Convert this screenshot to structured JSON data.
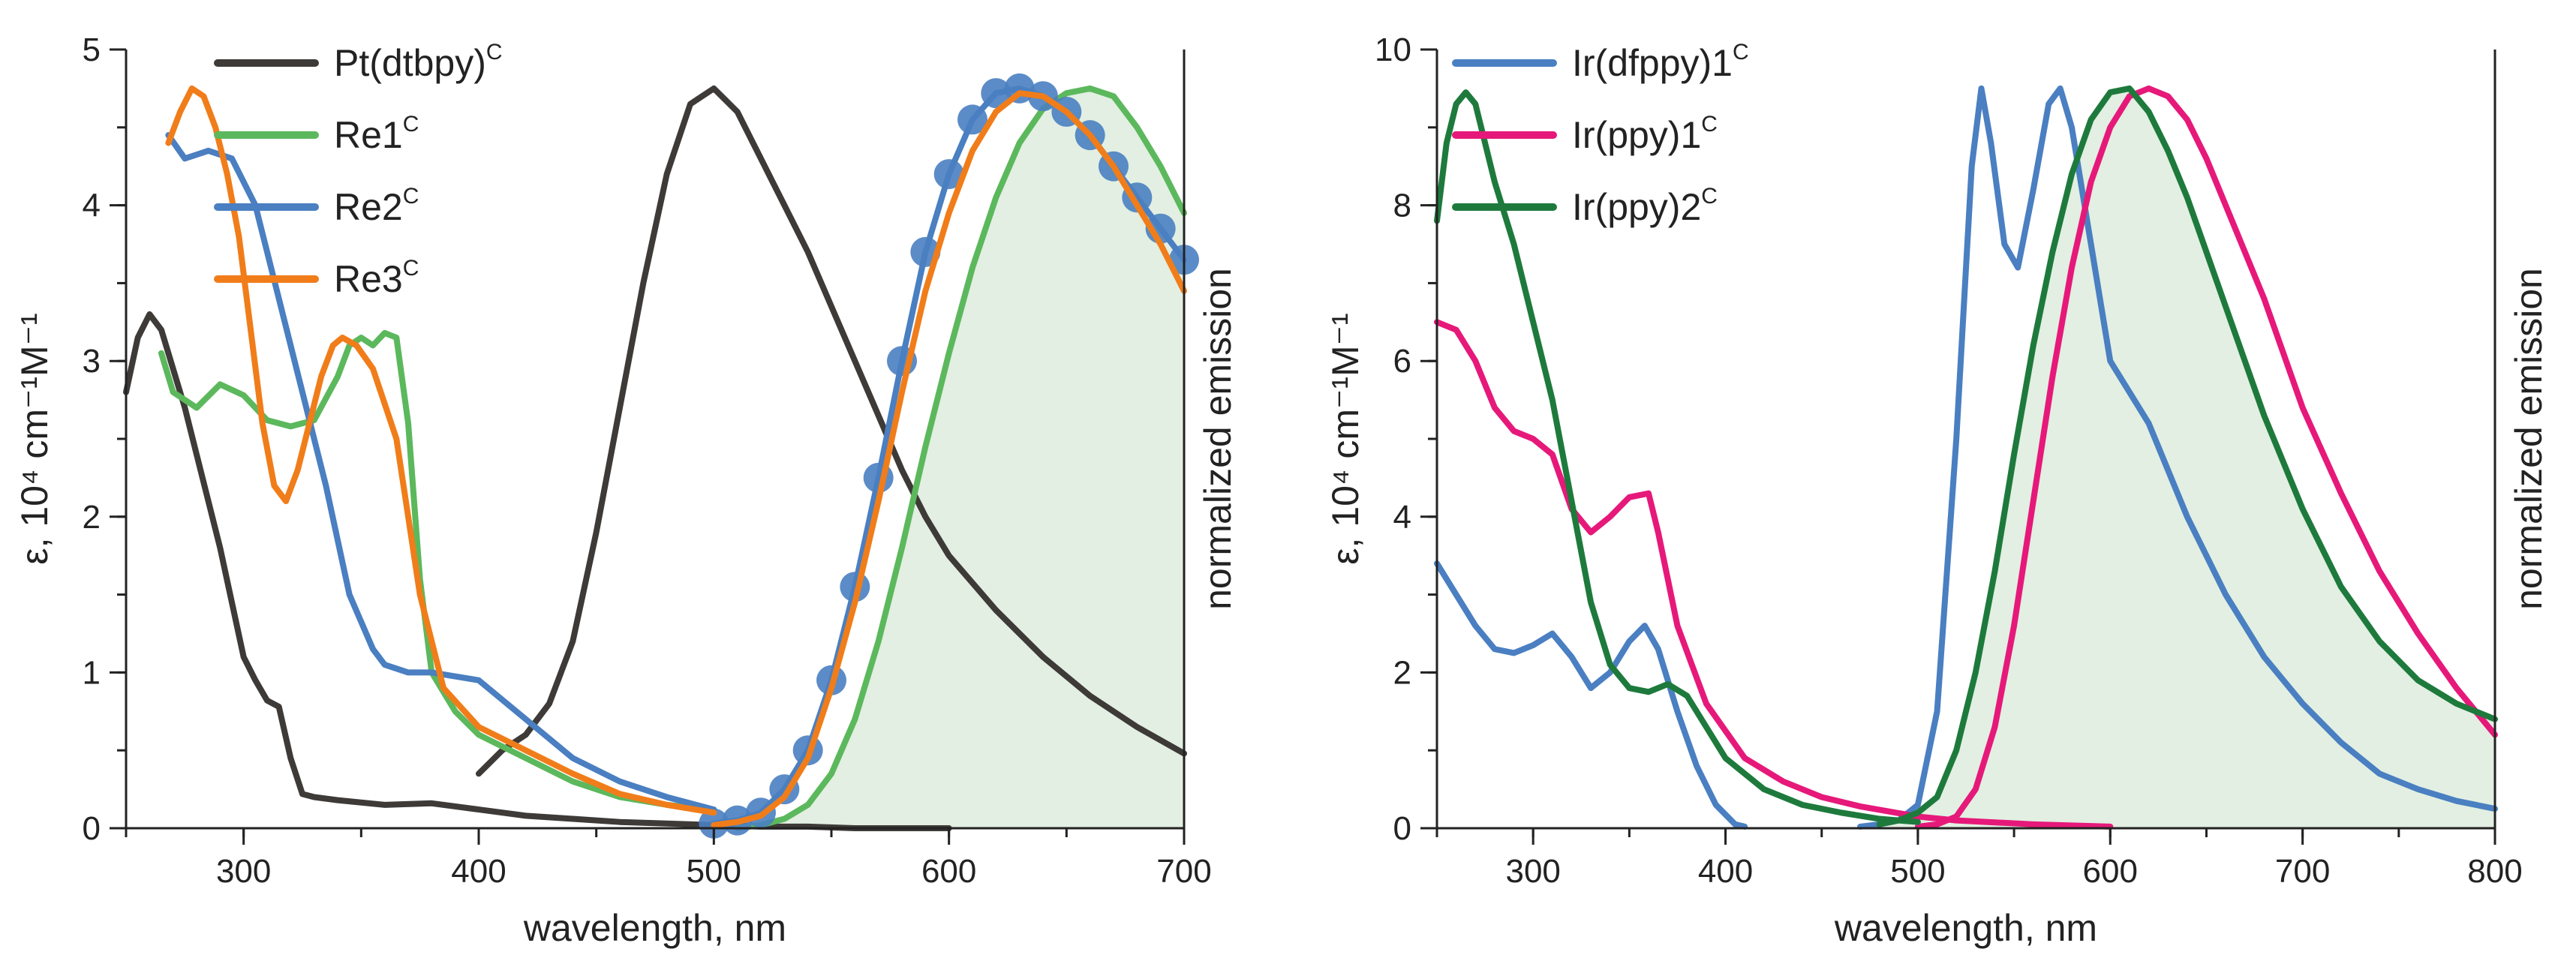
{
  "chart_data": [
    {
      "type": "line",
      "panel": "left",
      "xlabel": "wavelength, nm",
      "ylabel": "ε, 10⁴ cm⁻¹M⁻¹",
      "ylabel_right": "normalized emission",
      "xlim": [
        250,
        700
      ],
      "ylim": [
        0,
        5
      ],
      "xticks": [
        300,
        400,
        500,
        600,
        700
      ],
      "xtick_labels": [
        "300",
        "400",
        "500",
        "600",
        "700"
      ],
      "yticks": [
        0,
        1,
        2,
        3,
        4,
        5
      ],
      "ytick_labels": [
        "0",
        "1",
        "2",
        "3",
        "4",
        "5"
      ],
      "legend_position": "top-left",
      "series": [
        {
          "name": "Pt(dtbpy)",
          "sup": "C",
          "color": "#3d3a38",
          "kind": "absorption",
          "x": [
            250,
            255,
            260,
            265,
            270,
            275,
            280,
            290,
            300,
            305,
            310,
            315,
            320,
            325,
            330,
            340,
            360,
            380,
            400,
            420,
            440,
            460,
            480,
            500,
            520,
            540,
            560,
            580,
            600
          ],
          "y": [
            2.8,
            3.15,
            3.3,
            3.2,
            2.95,
            2.7,
            2.4,
            1.8,
            1.1,
            0.95,
            0.82,
            0.78,
            0.45,
            0.22,
            0.2,
            0.18,
            0.15,
            0.16,
            0.12,
            0.08,
            0.06,
            0.04,
            0.03,
            0.02,
            0.01,
            0.01,
            0.0,
            0.0,
            0.0
          ]
        },
        {
          "name": "Pt(dtbpy)",
          "sup": "C",
          "color": "#3d3a38",
          "kind": "emission",
          "legend": false,
          "x": [
            400,
            410,
            420,
            430,
            440,
            450,
            460,
            470,
            480,
            490,
            500,
            510,
            520,
            530,
            540,
            550,
            560,
            570,
            580,
            590,
            600,
            620,
            640,
            660,
            680,
            700
          ],
          "y": [
            0.35,
            0.5,
            0.6,
            0.8,
            1.2,
            1.9,
            2.7,
            3.5,
            4.2,
            4.65,
            4.75,
            4.6,
            4.3,
            4.0,
            3.7,
            3.35,
            3.0,
            2.65,
            2.3,
            2.0,
            1.75,
            1.4,
            1.1,
            0.85,
            0.65,
            0.48
          ]
        },
        {
          "name": "Re1",
          "sup": "C",
          "color": "#5cb85c",
          "kind": "absorption",
          "x": [
            265,
            270,
            280,
            290,
            300,
            310,
            320,
            330,
            340,
            345,
            350,
            355,
            360,
            365,
            370,
            375,
            380,
            390,
            400,
            420,
            440,
            460,
            480,
            500
          ],
          "y": [
            3.05,
            2.8,
            2.7,
            2.85,
            2.78,
            2.62,
            2.58,
            2.62,
            2.9,
            3.1,
            3.15,
            3.1,
            3.18,
            3.15,
            2.6,
            1.6,
            1.0,
            0.75,
            0.6,
            0.45,
            0.3,
            0.2,
            0.15,
            0.12
          ]
        },
        {
          "name": "Re1",
          "sup": "C",
          "color": "#5cb85c",
          "kind": "emission",
          "legend": false,
          "fill": "#e2efe2",
          "x": [
            510,
            520,
            530,
            540,
            550,
            560,
            570,
            580,
            590,
            600,
            610,
            620,
            630,
            640,
            650,
            660,
            670,
            680,
            690,
            700
          ],
          "y": [
            0.0,
            0.02,
            0.06,
            0.15,
            0.35,
            0.7,
            1.2,
            1.8,
            2.45,
            3.05,
            3.6,
            4.05,
            4.4,
            4.62,
            4.72,
            4.75,
            4.7,
            4.5,
            4.25,
            3.95
          ]
        },
        {
          "name": "Re2",
          "sup": "C",
          "color": "#4a7fc1",
          "kind": "absorption",
          "x": [
            268,
            275,
            285,
            295,
            305,
            315,
            325,
            335,
            345,
            355,
            360,
            370,
            380,
            400,
            420,
            440,
            460,
            480,
            500
          ],
          "y": [
            4.45,
            4.3,
            4.35,
            4.3,
            4.0,
            3.4,
            2.8,
            2.2,
            1.5,
            1.15,
            1.05,
            1.0,
            1.0,
            0.95,
            0.7,
            0.45,
            0.3,
            0.2,
            0.12
          ]
        },
        {
          "name": "Re2",
          "sup": "C",
          "color": "#4a7fc1",
          "kind": "emission",
          "legend": false,
          "markers": true,
          "x": [
            500,
            510,
            520,
            530,
            540,
            550,
            560,
            570,
            580,
            590,
            600,
            610,
            620,
            630,
            640,
            650,
            660,
            670,
            680,
            690,
            700
          ],
          "y": [
            0.03,
            0.05,
            0.1,
            0.25,
            0.5,
            0.95,
            1.55,
            2.25,
            3.0,
            3.7,
            4.2,
            4.55,
            4.72,
            4.75,
            4.7,
            4.6,
            4.45,
            4.25,
            4.05,
            3.85,
            3.65
          ]
        },
        {
          "name": "Re3",
          "sup": "C",
          "color": "#f07d1a",
          "kind": "absorption",
          "x": [
            268,
            273,
            278,
            283,
            288,
            293,
            298,
            303,
            308,
            313,
            318,
            323,
            328,
            333,
            338,
            342,
            348,
            355,
            365,
            375,
            385,
            400,
            420,
            440,
            460,
            480,
            500
          ],
          "y": [
            4.4,
            4.6,
            4.75,
            4.7,
            4.5,
            4.2,
            3.8,
            3.2,
            2.6,
            2.2,
            2.1,
            2.3,
            2.6,
            2.9,
            3.1,
            3.15,
            3.1,
            2.95,
            2.5,
            1.5,
            0.9,
            0.65,
            0.5,
            0.35,
            0.22,
            0.15,
            0.1
          ]
        },
        {
          "name": "Re3",
          "sup": "C",
          "color": "#f07d1a",
          "kind": "emission",
          "legend": false,
          "x": [
            500,
            510,
            520,
            530,
            540,
            550,
            560,
            570,
            580,
            590,
            600,
            610,
            620,
            630,
            640,
            650,
            660,
            670,
            680,
            690,
            700
          ],
          "y": [
            0.02,
            0.04,
            0.08,
            0.2,
            0.45,
            0.9,
            1.45,
            2.1,
            2.8,
            3.45,
            3.95,
            4.35,
            4.6,
            4.72,
            4.7,
            4.6,
            4.45,
            4.25,
            4.0,
            3.75,
            3.45
          ]
        }
      ]
    },
    {
      "type": "line",
      "panel": "right",
      "xlabel": "wavelength, nm",
      "ylabel": "ε, 10⁴ cm⁻¹M⁻¹",
      "ylabel_right": "normalized emission",
      "xlim": [
        250,
        800
      ],
      "ylim": [
        0,
        10
      ],
      "xticks": [
        300,
        400,
        500,
        600,
        700,
        800
      ],
      "xtick_labels": [
        "300",
        "400",
        "500",
        "600",
        "700",
        "800"
      ],
      "yticks": [
        0,
        2,
        4,
        6,
        8,
        10
      ],
      "ytick_labels": [
        "0",
        "2",
        "4",
        "6",
        "8",
        "10"
      ],
      "legend_position": "top-left",
      "series": [
        {
          "name": "Ir(dfppy)1",
          "sup": "C",
          "color": "#4a7fc1",
          "kind": "absorption",
          "x": [
            250,
            260,
            270,
            280,
            290,
            300,
            310,
            320,
            330,
            340,
            350,
            358,
            365,
            375,
            385,
            395,
            405,
            410
          ],
          "y": [
            3.4,
            3.0,
            2.6,
            2.3,
            2.25,
            2.35,
            2.5,
            2.2,
            1.8,
            2.0,
            2.4,
            2.6,
            2.3,
            1.5,
            0.8,
            0.3,
            0.05,
            0.02
          ]
        },
        {
          "name": "Ir(dfppy)1",
          "sup": "C",
          "color": "#4a7fc1",
          "kind": "emission",
          "legend": false,
          "x": [
            470,
            480,
            490,
            500,
            510,
            520,
            528,
            533,
            538,
            545,
            552,
            560,
            568,
            574,
            580,
            590,
            600,
            620,
            640,
            660,
            680,
            700,
            720,
            740,
            760,
            780,
            800
          ],
          "y": [
            0.02,
            0.05,
            0.1,
            0.3,
            1.5,
            5.0,
            8.5,
            9.5,
            8.8,
            7.5,
            7.2,
            8.2,
            9.3,
            9.5,
            9.0,
            7.5,
            6.0,
            5.2,
            4.0,
            3.0,
            2.2,
            1.6,
            1.1,
            0.7,
            0.5,
            0.35,
            0.25
          ]
        },
        {
          "name": "Ir(ppy)1",
          "sup": "C",
          "color": "#e6197a",
          "kind": "absorption",
          "x": [
            250,
            260,
            270,
            280,
            290,
            300,
            310,
            320,
            330,
            340,
            350,
            360,
            365,
            375,
            390,
            410,
            430,
            450,
            470,
            500,
            520,
            560,
            600
          ],
          "y": [
            6.5,
            6.4,
            6.0,
            5.4,
            5.1,
            5.0,
            4.8,
            4.1,
            3.8,
            4.0,
            4.25,
            4.3,
            3.8,
            2.6,
            1.6,
            0.9,
            0.6,
            0.4,
            0.28,
            0.15,
            0.1,
            0.05,
            0.02
          ]
        },
        {
          "name": "Ir(ppy)1",
          "sup": "C",
          "color": "#e6197a",
          "kind": "emission",
          "legend": false,
          "x": [
            500,
            510,
            520,
            530,
            540,
            550,
            560,
            570,
            580,
            590,
            600,
            610,
            620,
            630,
            640,
            650,
            660,
            670,
            680,
            690,
            700,
            720,
            740,
            760,
            780,
            800
          ],
          "y": [
            0.02,
            0.05,
            0.15,
            0.5,
            1.3,
            2.6,
            4.2,
            5.8,
            7.2,
            8.3,
            9.0,
            9.4,
            9.5,
            9.4,
            9.1,
            8.6,
            8.0,
            7.4,
            6.8,
            6.1,
            5.4,
            4.3,
            3.3,
            2.5,
            1.8,
            1.2
          ]
        },
        {
          "name": "Ir(ppy)2",
          "sup": "C",
          "color": "#1e7a3c",
          "kind": "absorption",
          "x": [
            250,
            255,
            260,
            265,
            270,
            275,
            280,
            290,
            300,
            310,
            320,
            330,
            340,
            350,
            360,
            370,
            380,
            390,
            400,
            420,
            440,
            460,
            480,
            500
          ],
          "y": [
            7.8,
            8.8,
            9.3,
            9.45,
            9.3,
            8.8,
            8.3,
            7.5,
            6.5,
            5.5,
            4.2,
            2.9,
            2.1,
            1.8,
            1.75,
            1.85,
            1.7,
            1.3,
            0.9,
            0.5,
            0.3,
            0.2,
            0.12,
            0.08
          ]
        },
        {
          "name": "Ir(ppy)2",
          "sup": "C",
          "color": "#1e7a3c",
          "kind": "emission",
          "legend": false,
          "fill": "#e2efe2",
          "x": [
            480,
            490,
            500,
            510,
            520,
            530,
            540,
            550,
            560,
            570,
            580,
            590,
            600,
            610,
            620,
            630,
            640,
            650,
            660,
            670,
            680,
            690,
            700,
            720,
            740,
            760,
            780,
            800
          ],
          "y": [
            0.05,
            0.1,
            0.2,
            0.4,
            1.0,
            2.0,
            3.3,
            4.8,
            6.2,
            7.4,
            8.4,
            9.1,
            9.45,
            9.5,
            9.2,
            8.7,
            8.1,
            7.4,
            6.7,
            6.0,
            5.3,
            4.7,
            4.1,
            3.1,
            2.4,
            1.9,
            1.6,
            1.4
          ]
        }
      ]
    }
  ]
}
